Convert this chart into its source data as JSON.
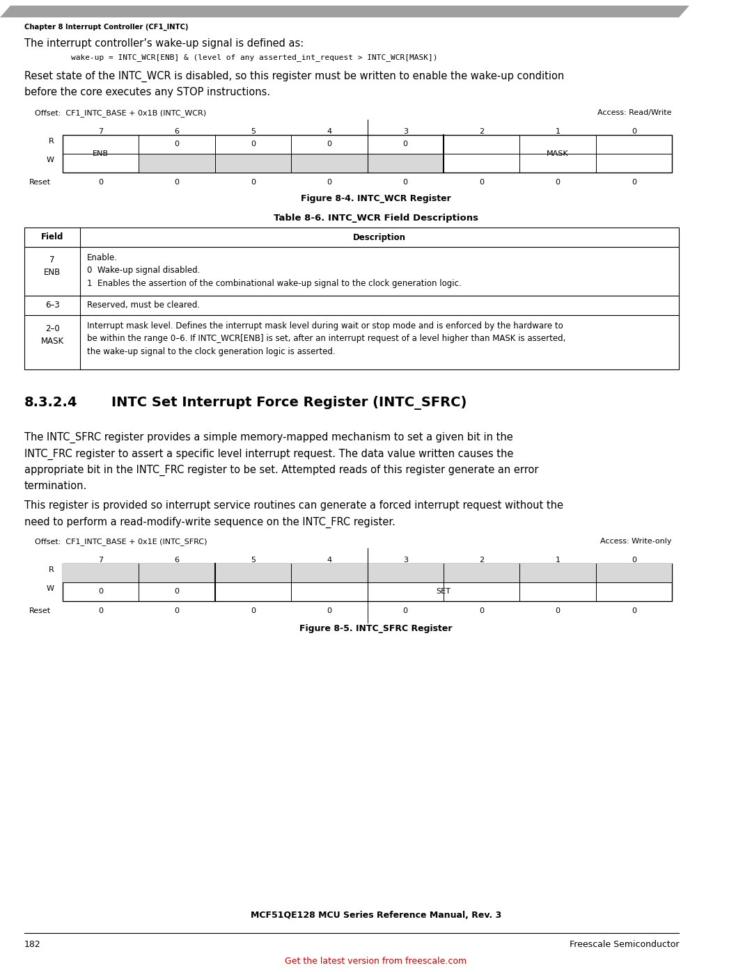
{
  "page_width": 10.8,
  "page_height": 13.97,
  "dpi": 100,
  "bg_color": "#ffffff",
  "header_bar_color": "#a0a0a0",
  "chapter_header": "Chapter 8 Interrupt Controller (CF1_INTC)",
  "intro_text1": "The interrupt controller’s wake-up signal is defined as:",
  "code_line": "    wake-up = INTC_WCR[ENB] & (level of any asserted_int_request > INTC_WCR[MASK])",
  "body_text1_l1": "Reset state of the INTC_WCR is disabled, so this register must be written to enable the wake-up condition",
  "body_text1_l2": "before the core executes any STOP instructions.",
  "wcr_offset": "Offset:  CF1_INTC_BASE + 0x1B (INTC_WCR)",
  "wcr_access": "Access: Read/Write",
  "wcr_bits": [
    7,
    6,
    5,
    4,
    3,
    2,
    1,
    0
  ],
  "wcr_reset": [
    0,
    0,
    0,
    0,
    0,
    0,
    0,
    0
  ],
  "wcr_figure": "Figure 8-4. INTC_WCR Register",
  "table_title": "Table 8-6. INTC_WCR Field Descriptions",
  "section_num": "8.3.2.4",
  "section_title": "INTC Set Interrupt Force Register (INTC_SFRC)",
  "sfrc_text1_l1": "The INTC_SFRC register provides a simple memory-mapped mechanism to set a given bit in the",
  "sfrc_text1_l2": "INTC_FRC register to assert a specific level interrupt request. The data value written causes the",
  "sfrc_text1_l3": "appropriate bit in the INTC_FRC register to be set. Attempted reads of this register generate an error",
  "sfrc_text1_l4": "termination.",
  "sfrc_text2_l1": "This register is provided so interrupt service routines can generate a forced interrupt request without the",
  "sfrc_text2_l2": "need to perform a read-modify-write sequence on the INTC_FRC register.",
  "sfrc_offset": "Offset:  CF1_INTC_BASE + 0x1E (INTC_SFRC)",
  "sfrc_access": "Access: Write-only",
  "sfrc_bits": [
    7,
    6,
    5,
    4,
    3,
    2,
    1,
    0
  ],
  "sfrc_reset": [
    0,
    0,
    0,
    0,
    0,
    0,
    0,
    0
  ],
  "sfrc_figure": "Figure 8-5. INTC_SFRC Register",
  "footer_manual": "MCF51QE128 MCU Series Reference Manual, Rev. 3",
  "footer_page": "182",
  "footer_company": "Freescale Semiconductor",
  "footer_link": "Get the latest version from freescale.com",
  "footer_link_color": "#cc0000",
  "light_gray": "#c8c8c8",
  "white": "#ffffff",
  "black": "#000000",
  "cell_gray": "#d8d8d8"
}
